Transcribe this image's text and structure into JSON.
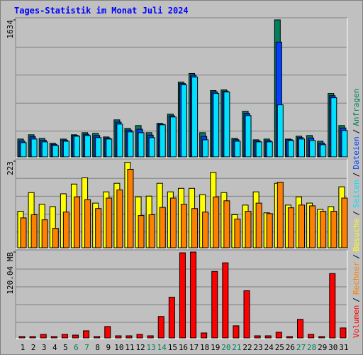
{
  "chart_data": [
    {
      "type": "bar",
      "title": "Tages-Statistik im Monat Juli 2024",
      "legend_separator": "/",
      "ylim": [
        0,
        1634
      ],
      "yticks": [
        1634
      ],
      "series": [
        {
          "name": "Anfragen",
          "color": "#00805c",
          "values": [
            213,
            264,
            221,
            162,
            213,
            264,
            289,
            281,
            238,
            442,
            340,
            374,
            289,
            400,
            510,
            893,
            995,
            289,
            791,
            799,
            221,
            544,
            204,
            213,
            1634,
            213,
            247,
            255,
            187,
            757,
            374
          ]
        },
        {
          "name": "Dateien",
          "color": "#0040ff",
          "values": [
            190,
            240,
            200,
            150,
            200,
            255,
            270,
            255,
            225,
            415,
            320,
            330,
            260,
            390,
            490,
            875,
            975,
            245,
            775,
            785,
            205,
            520,
            190,
            195,
            1369,
            205,
            230,
            225,
            165,
            730,
            345
          ]
        },
        {
          "name": "Seiten",
          "color": "#00e0ff",
          "values": [
            170,
            213,
            179,
            136,
            187,
            247,
            255,
            230,
            213,
            391,
            298,
            289,
            230,
            383,
            476,
            859,
            952,
            204,
            757,
            774,
            187,
            493,
            179,
            179,
            621,
            196,
            213,
            196,
            145,
            706,
            315
          ]
        }
      ]
    },
    {
      "type": "bar",
      "ylim": [
        0,
        223
      ],
      "yticks": [
        223
      ],
      "series": [
        {
          "name": "Besuche",
          "color": "#ffff00",
          "values": [
            94,
            142,
            112,
            106,
            139,
            164,
            180,
            115,
            144,
            166,
            220,
            131,
            133,
            166,
            144,
            153,
            153,
            137,
            194,
            142,
            85,
            110,
            144,
            90,
            166,
            110,
            131,
            115,
            99,
            106,
            157
          ]
        },
        {
          "name": "Rechner",
          "color": "#ff8000",
          "values": [
            77,
            85,
            72,
            50,
            92,
            131,
            124,
            101,
            128,
            149,
            202,
            83,
            85,
            104,
            128,
            112,
            101,
            92,
            131,
            121,
            74,
            94,
            115,
            88,
            169,
            103,
            110,
            108,
            94,
            94,
            128
          ]
        }
      ]
    },
    {
      "type": "bar",
      "ylim": [
        0,
        120.04
      ],
      "yticks": [
        {
          "value": 120.04,
          "label": "120.04 MB"
        }
      ],
      "categories": [
        "1",
        "2",
        "3",
        "4",
        "5",
        "6",
        "7",
        "8",
        "9",
        "10",
        "11",
        "12",
        "13",
        "14",
        "15",
        "16",
        "17",
        "18",
        "19",
        "20",
        "21",
        "22",
        "23",
        "24",
        "25",
        "26",
        "27",
        "28",
        "29",
        "30",
        "31"
      ],
      "highlighted": [
        "6",
        "7",
        "13",
        "14",
        "20",
        "21",
        "27",
        "28"
      ],
      "highlight_color": "#00805c",
      "series": [
        {
          "name": "Volumen",
          "color": "#ff0000",
          "values": [
            2,
            2,
            5,
            2,
            5,
            4,
            10,
            2,
            16,
            3,
            3,
            5,
            3,
            30,
            57,
            119,
            120.04,
            7,
            93,
            105,
            17,
            66,
            3,
            3,
            8,
            2,
            26,
            5,
            2,
            90,
            14
          ]
        }
      ]
    }
  ]
}
